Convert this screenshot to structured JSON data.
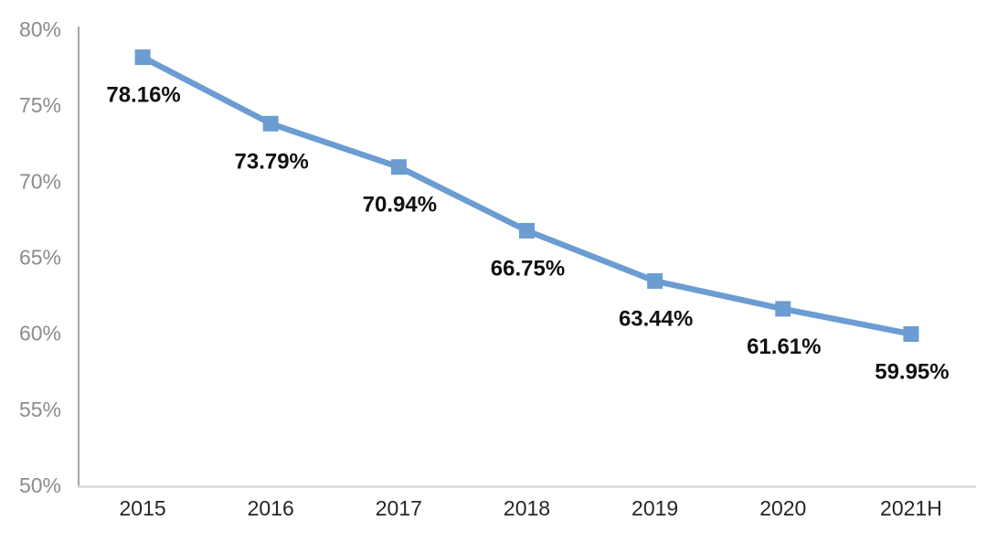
{
  "chart_data": {
    "type": "line",
    "title": "",
    "xlabel": "",
    "ylabel": "",
    "categories": [
      "2015",
      "2016",
      "2017",
      "2018",
      "2019",
      "2020",
      "2021H"
    ],
    "values": [
      78.16,
      73.79,
      70.94,
      66.75,
      63.44,
      61.61,
      59.95
    ],
    "data_labels": [
      "78.16%",
      "73.79%",
      "70.94%",
      "66.75%",
      "63.44%",
      "61.61%",
      "59.95%"
    ],
    "ylim": [
      50,
      80
    ],
    "yticks": [
      50,
      55,
      60,
      65,
      70,
      75,
      80
    ],
    "ytick_labels": [
      "50%",
      "55%",
      "60%",
      "65%",
      "70%",
      "75%",
      "80%"
    ],
    "grid": false,
    "legend": false,
    "marker_shape": "square",
    "colors": {
      "line": "#6B9CD2",
      "marker": "#6B9CD2",
      "data_label": "#111111",
      "ytick_label": "#8C8C8C",
      "xtick_label": "#262626",
      "y_axis_line": "#A6A6A6",
      "x_axis_line": "#D9D9D9",
      "background": "#FFFFFF"
    }
  }
}
